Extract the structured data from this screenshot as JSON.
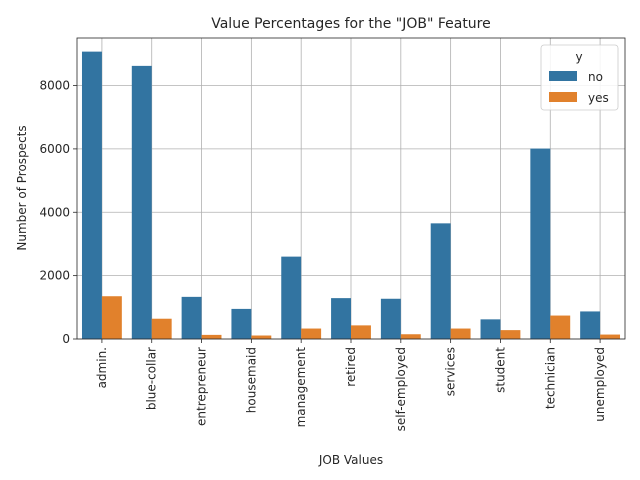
{
  "chart_data": {
    "type": "bar",
    "title": "Value Percentages for the \"JOB\" Feature",
    "xlabel": "JOB Values",
    "ylabel": "Number of Prospects",
    "categories": [
      "admin.",
      "blue-collar",
      "entrepreneur",
      "housemaid",
      "management",
      "retired",
      "self-employed",
      "services",
      "student",
      "technician",
      "unemployed"
    ],
    "series": [
      {
        "name": "no",
        "color": "#3274a1",
        "values": [
          9070,
          8620,
          1330,
          950,
          2600,
          1290,
          1270,
          3650,
          620,
          6010,
          870
        ]
      },
      {
        "name": "yes",
        "color": "#e1812c",
        "values": [
          1350,
          640,
          130,
          110,
          330,
          430,
          150,
          330,
          280,
          740,
          140
        ]
      }
    ],
    "ylim": [
      0,
      9500
    ],
    "yticks": [
      0,
      2000,
      4000,
      6000,
      8000
    ],
    "grid": true,
    "legend": {
      "title": "y",
      "placement": "top-right"
    }
  }
}
